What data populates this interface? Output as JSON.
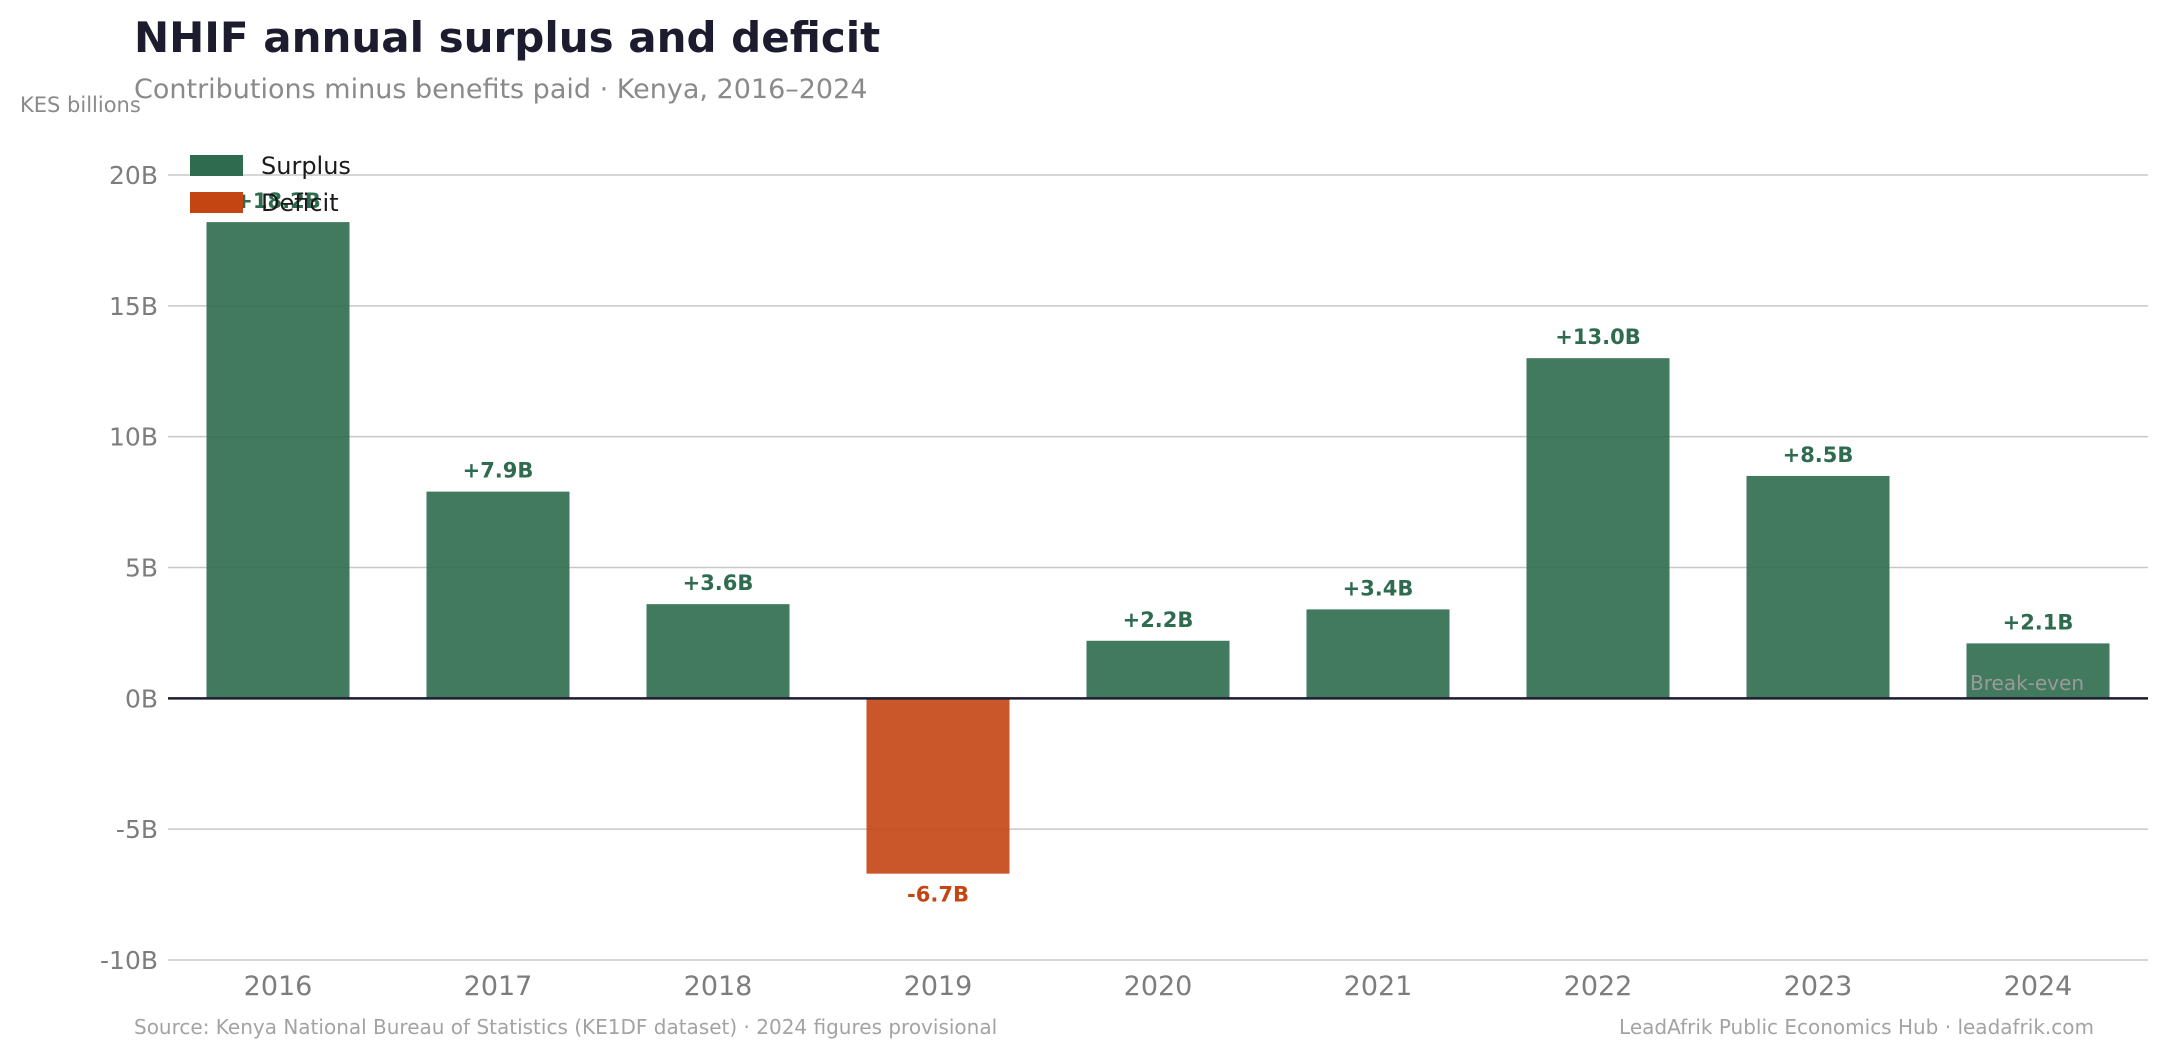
{
  "chart_data": {
    "type": "bar",
    "title": "NHIF annual surplus and deficit",
    "subtitle": "Contributions minus benefits paid · Kenya, 2016–2024",
    "ylabel": "KES billions",
    "xlabel": "",
    "categories": [
      "2016",
      "2017",
      "2018",
      "2019",
      "2020",
      "2021",
      "2022",
      "2023",
      "2024"
    ],
    "values": [
      18.2,
      7.9,
      3.6,
      -6.7,
      2.2,
      3.4,
      13.0,
      8.5,
      2.1
    ],
    "value_labels": [
      "+18.2B",
      "+7.9B",
      "+3.6B",
      "-6.7B",
      "+2.2B",
      "+3.4B",
      "+13.0B",
      "+8.5B",
      "+2.1B"
    ],
    "ylim": [
      -10,
      20
    ],
    "yticks": [
      20,
      15,
      10,
      5,
      0,
      -5,
      -10
    ],
    "ytick_labels": [
      "20B",
      "15B",
      "10B",
      "5B",
      "0B",
      "-5B",
      "-10B"
    ],
    "grid": true,
    "legend": {
      "placement": "top-left",
      "entries": [
        {
          "name": "Surplus",
          "color": "#2e6b4f"
        },
        {
          "name": "Deficit",
          "color": "#c44512"
        }
      ]
    },
    "annotations": [
      "Break-even"
    ],
    "colors": {
      "surplus": "#2e6b4f",
      "deficit": "#c44512",
      "zero_line": "#1c1c2e",
      "grid": "#c8c8c8"
    }
  },
  "footer": {
    "source": "Source: Kenya National Bureau of Statistics (KE1DF dataset)  ·  2024 figures provisional",
    "credit": "LeadAfrik Public Economics Hub  ·  leadafrik.com"
  }
}
